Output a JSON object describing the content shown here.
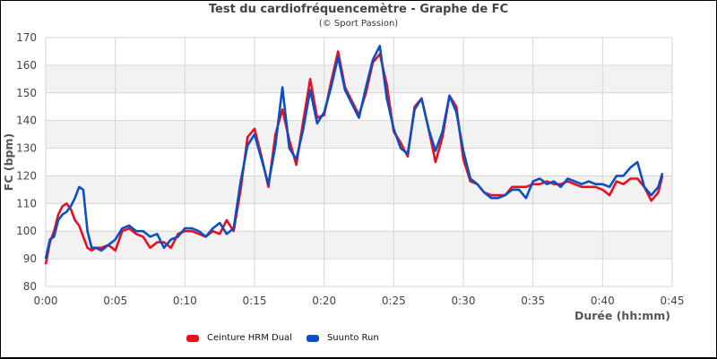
{
  "title": "Test du cardiofréquencemètre - Graphe de FC",
  "subtitle": "(© Sport Passion)",
  "colors": {
    "series_red": "#e8101e",
    "series_blue": "#0a4fc4",
    "band": "#f2f2f2",
    "grid": "#d6d6d6"
  },
  "chart_data": {
    "type": "line",
    "title": "Test du cardiofréquencemètre - Graphe de FC",
    "subtitle": "(© Sport Passion)",
    "xlabel": "Durée (hh:mm)",
    "ylabel": "FC (bpm)",
    "xlim": [
      0,
      45
    ],
    "ylim": [
      80,
      170
    ],
    "x_unit": "minutes",
    "x_ticks": [
      "0:00",
      "0:05",
      "0:10",
      "0:15",
      "0:20",
      "0:25",
      "0:30",
      "0:35",
      "0:40",
      "0:45"
    ],
    "y_ticks": [
      80,
      90,
      100,
      110,
      120,
      130,
      140,
      150,
      160,
      170
    ],
    "grid": true,
    "alternating_bands": true,
    "legend_position": "bottom",
    "series": [
      {
        "name": "Ceinture HRM Dual",
        "color": "#e8101e",
        "x": [
          0,
          0.3,
          0.6,
          0.9,
          1.2,
          1.5,
          1.8,
          2.1,
          2.4,
          2.7,
          3.0,
          3.3,
          3.6,
          4.0,
          4.5,
          5.0,
          5.5,
          6.0,
          6.5,
          7.0,
          7.5,
          8.0,
          8.5,
          9.0,
          9.5,
          10.0,
          10.5,
          11.0,
          11.5,
          12.0,
          12.5,
          13.0,
          13.5,
          14.0,
          14.5,
          15.0,
          15.5,
          16.0,
          16.5,
          17.0,
          17.5,
          18.0,
          18.5,
          19.0,
          19.5,
          20.0,
          20.5,
          21.0,
          21.5,
          22.0,
          22.5,
          23.0,
          23.5,
          24.0,
          24.5,
          25.0,
          25.5,
          26.0,
          26.5,
          27.0,
          27.5,
          28.0,
          28.5,
          29.0,
          29.5,
          30.0,
          30.5,
          31.0,
          31.5,
          32.0,
          32.5,
          33.0,
          33.5,
          34.0,
          34.5,
          35.0,
          35.5,
          36.0,
          36.5,
          37.0,
          37.5,
          38.0,
          38.5,
          39.0,
          39.5,
          40.0,
          40.5,
          41.0,
          41.5,
          42.0,
          42.5,
          43.0,
          43.5,
          44.0,
          44.3
        ],
        "values": [
          88,
          96,
          100,
          106,
          109,
          110,
          108,
          104,
          102,
          98,
          94,
          93,
          94,
          94,
          95,
          93,
          100,
          101,
          99,
          98,
          94,
          96,
          96,
          94,
          99,
          100,
          100,
          99,
          98,
          100,
          99,
          104,
          100,
          115,
          134,
          137,
          127,
          116,
          135,
          144,
          133,
          124,
          140,
          155,
          141,
          142,
          154,
          165,
          152,
          147,
          142,
          150,
          161,
          164,
          153,
          136,
          132,
          127,
          145,
          148,
          137,
          125,
          134,
          149,
          145,
          126,
          118,
          117,
          114,
          113,
          113,
          113,
          116,
          116,
          116,
          117,
          117,
          118,
          117,
          117,
          118,
          117,
          116,
          116,
          116,
          115,
          113,
          118,
          117,
          119,
          119,
          116,
          111,
          114,
          120
        ]
      },
      {
        "name": "Suunto Run",
        "color": "#0a4fc4",
        "x": [
          0,
          0.3,
          0.6,
          0.9,
          1.2,
          1.5,
          1.8,
          2.1,
          2.4,
          2.7,
          3.0,
          3.3,
          3.6,
          4.0,
          4.5,
          5.0,
          5.5,
          6.0,
          6.5,
          7.0,
          7.5,
          8.0,
          8.5,
          9.0,
          9.5,
          10.0,
          10.5,
          11.0,
          11.5,
          12.0,
          12.5,
          13.0,
          13.5,
          14.0,
          14.5,
          15.0,
          15.5,
          16.0,
          16.5,
          17.0,
          17.5,
          18.0,
          18.5,
          19.0,
          19.5,
          20.0,
          20.5,
          21.0,
          21.5,
          22.0,
          22.5,
          23.0,
          23.5,
          24.0,
          24.5,
          25.0,
          25.5,
          26.0,
          26.5,
          27.0,
          27.5,
          28.0,
          28.5,
          29.0,
          29.5,
          30.0,
          30.5,
          31.0,
          31.5,
          32.0,
          32.5,
          33.0,
          33.5,
          34.0,
          34.5,
          35.0,
          35.5,
          36.0,
          36.5,
          37.0,
          37.5,
          38.0,
          38.5,
          39.0,
          39.5,
          40.0,
          40.5,
          41.0,
          41.5,
          42.0,
          42.5,
          43.0,
          43.5,
          44.0,
          44.3
        ],
        "values": [
          90,
          97,
          98,
          104,
          106,
          107,
          109,
          112,
          116,
          115,
          100,
          94,
          94,
          93,
          95,
          97,
          101,
          102,
          100,
          100,
          98,
          99,
          94,
          97,
          98,
          101,
          101,
          100,
          98,
          101,
          103,
          99,
          101,
          118,
          131,
          135,
          126,
          117,
          131,
          152,
          130,
          126,
          137,
          151,
          139,
          143,
          152,
          163,
          151,
          146,
          141,
          152,
          162,
          167,
          148,
          137,
          130,
          128,
          144,
          148,
          137,
          129,
          136,
          149,
          143,
          129,
          119,
          117,
          114,
          112,
          112,
          113,
          115,
          115,
          112,
          118,
          119,
          117,
          118,
          116,
          119,
          118,
          117,
          118,
          117,
          117,
          116,
          120,
          120,
          123,
          125,
          116,
          113,
          116,
          121
        ]
      }
    ]
  },
  "legend": {
    "items": [
      {
        "label": "Ceinture HRM Dual",
        "color": "#e8101e"
      },
      {
        "label": "Suunto Run",
        "color": "#0a4fc4"
      }
    ]
  }
}
